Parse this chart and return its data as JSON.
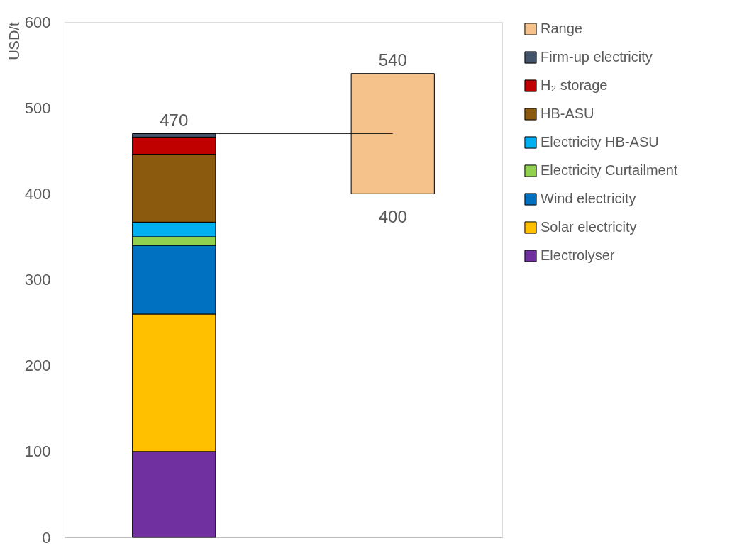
{
  "chart_data": {
    "type": "bar",
    "ylabel": "USD/t",
    "categories": [
      null,
      null
    ],
    "stacked": true,
    "series": [
      {
        "name": "Electrolyser",
        "color": "#7030a0",
        "values": [
          100,
          null
        ]
      },
      {
        "name": "Solar electricity",
        "color": "#ffc000",
        "values": [
          160,
          null
        ]
      },
      {
        "name": "Wind electricity",
        "color": "#0070c0",
        "values": [
          80,
          null
        ]
      },
      {
        "name": "Electricity Curtailment",
        "color": "#92d050",
        "values": [
          10,
          null
        ]
      },
      {
        "name": "Electricity HB-ASU",
        "color": "#00b0f0",
        "values": [
          17,
          null
        ]
      },
      {
        "name": "HB-ASU",
        "color": "#8b5a0e",
        "values": [
          79,
          null
        ]
      },
      {
        "name": "H₂ storage",
        "color": "#c00000",
        "values": [
          20,
          null
        ]
      },
      {
        "name": "Firm-up electricity",
        "color": "#44546a",
        "values": [
          4,
          null
        ]
      },
      {
        "name": "Range",
        "color": "#f4c28a",
        "values": [
          null,
          140
        ],
        "base": [
          null,
          400
        ]
      }
    ],
    "ylim": [
      0,
      600
    ],
    "yticks": [
      0,
      100,
      200,
      300,
      400,
      500,
      600
    ],
    "annotations": [
      {
        "text": "470",
        "y": 470
      },
      {
        "text": "540",
        "y": 540
      },
      {
        "text": "400",
        "y": 400
      }
    ],
    "ref_lines": [
      {
        "axis": "y",
        "value": 470,
        "color": "#000000"
      }
    ],
    "grid": false,
    "legend": "right"
  }
}
